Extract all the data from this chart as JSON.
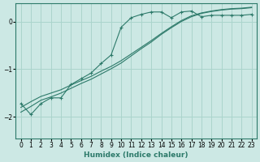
{
  "xlabel": "Humidex (Indice chaleur)",
  "ylabel": "",
  "bg_color": "#cce8e4",
  "grid_color": "#aad4cc",
  "line_color": "#2d7a6a",
  "xlim": [
    -0.5,
    23.5
  ],
  "ylim": [
    -2.45,
    0.38
  ],
  "xticks": [
    0,
    1,
    2,
    3,
    4,
    5,
    6,
    7,
    8,
    9,
    10,
    11,
    12,
    13,
    14,
    15,
    16,
    17,
    18,
    19,
    20,
    21,
    22,
    23
  ],
  "yticks": [
    0,
    -1,
    -2
  ],
  "line1_x": [
    0,
    1,
    2,
    3,
    4,
    5,
    6,
    7,
    8,
    9,
    10,
    11,
    12,
    13,
    14,
    15,
    16,
    17,
    18,
    19,
    20,
    21,
    22,
    23
  ],
  "line1_y": [
    -1.72,
    -1.95,
    -1.72,
    -1.6,
    -1.6,
    -1.32,
    -1.2,
    -1.08,
    -0.88,
    -0.7,
    -0.12,
    0.08,
    0.15,
    0.2,
    0.2,
    0.08,
    0.2,
    0.22,
    0.1,
    0.13,
    0.13,
    0.13,
    0.13,
    0.15
  ],
  "line2_x": [
    0,
    1,
    2,
    3,
    4,
    5,
    6,
    7,
    8,
    9,
    10,
    11,
    12,
    13,
    14,
    15,
    16,
    17,
    18,
    19,
    20,
    21,
    22,
    23
  ],
  "line2_y": [
    -1.9,
    -1.78,
    -1.65,
    -1.58,
    -1.5,
    -1.4,
    -1.3,
    -1.21,
    -1.1,
    -0.99,
    -0.87,
    -0.72,
    -0.57,
    -0.43,
    -0.27,
    -0.13,
    0.0,
    0.1,
    0.17,
    0.21,
    0.24,
    0.26,
    0.27,
    0.29
  ],
  "line3_x": [
    0,
    1,
    2,
    3,
    4,
    5,
    6,
    7,
    8,
    9,
    10,
    11,
    12,
    13,
    14,
    15,
    16,
    17,
    18,
    19,
    20,
    21,
    22,
    23
  ],
  "line3_y": [
    -1.8,
    -1.68,
    -1.57,
    -1.5,
    -1.43,
    -1.33,
    -1.24,
    -1.15,
    -1.04,
    -0.94,
    -0.82,
    -0.68,
    -0.54,
    -0.4,
    -0.25,
    -0.11,
    0.02,
    0.12,
    0.18,
    0.22,
    0.25,
    0.27,
    0.28,
    0.3
  ]
}
